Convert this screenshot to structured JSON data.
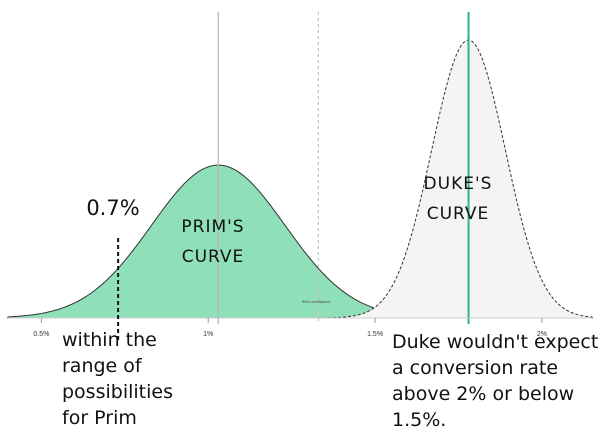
{
  "chart_data": {
    "type": "area",
    "title": "",
    "xlabel": "",
    "ylabel": "",
    "xlim": [
      0.4,
      2.15
    ],
    "x_ticks": [
      "0.5%",
      "1%",
      "1.5%",
      "2%"
    ],
    "x_tick_values": [
      0.5,
      1.0,
      1.5,
      2.0
    ],
    "grid": false,
    "series": [
      {
        "name": "PRIM'S CURVE",
        "mean": 1.03,
        "sd": 0.2,
        "fill": "#8fdfb8",
        "stroke": "#333333",
        "style": "solid"
      },
      {
        "name": "DUKE'S CURVE",
        "mean": 1.78,
        "sd": 0.11,
        "fill": "#f4f4f4",
        "stroke": "#333333",
        "style": "dashed"
      }
    ],
    "reference_lines": [
      {
        "x": 1.03,
        "color": "#b8b8b8",
        "style": "solid"
      },
      {
        "x": 1.33,
        "color": "#c8c8c8",
        "style": "dashed"
      },
      {
        "x": 1.78,
        "color": "#2db87a",
        "style": "solid"
      }
    ],
    "annotations": {
      "marker_value": "0.7%",
      "marker_x": 0.73,
      "inner_label": "95% confidence",
      "prim_label": [
        "PRIM'S",
        "CURVE"
      ],
      "duke_label": [
        "DUKE'S",
        "CURVE"
      ],
      "left_note": [
        "within the",
        "range of",
        "possibilities",
        "for Prim"
      ],
      "right_note": [
        "Duke wouldn't expect",
        "a conversion rate",
        "above 2% or below",
        "1.5%."
      ]
    }
  }
}
